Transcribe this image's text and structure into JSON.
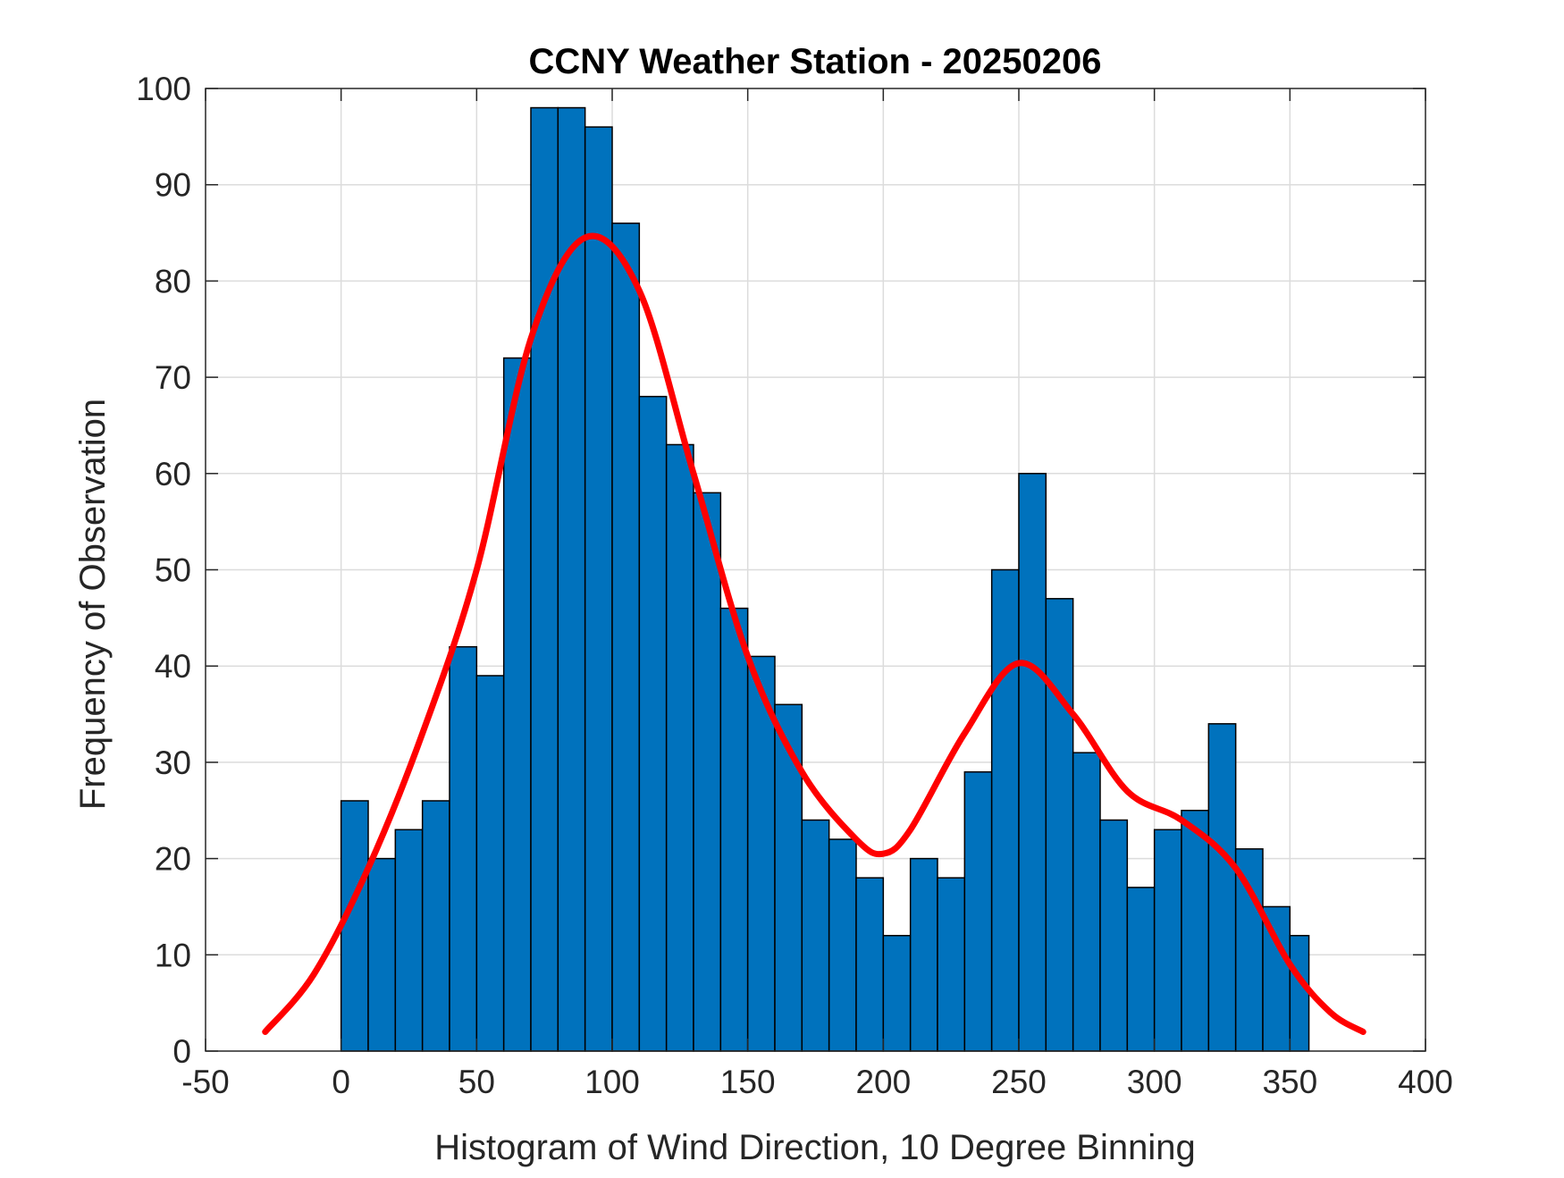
{
  "chart_data": {
    "type": "bar",
    "title": "CCNY Weather Station - 20250206",
    "xlabel": "Histogram of Wind Direction, 10 Degree Binning",
    "ylabel": "Frequency of Observation",
    "xlim": [
      -50,
      400
    ],
    "ylim": [
      0,
      100
    ],
    "grid": true,
    "xticks": [
      -50,
      0,
      50,
      100,
      150,
      200,
      250,
      300,
      350,
      400
    ],
    "yticks": [
      0,
      10,
      20,
      30,
      40,
      50,
      60,
      70,
      80,
      90,
      100
    ],
    "bin_width": 10,
    "bin_starts": [
      0,
      10,
      20,
      30,
      40,
      50,
      60,
      70,
      80,
      90,
      100,
      110,
      120,
      130,
      140,
      150,
      160,
      170,
      180,
      190,
      200,
      210,
      220,
      230,
      240,
      250,
      260,
      270,
      280,
      290,
      300,
      310,
      320,
      330,
      340,
      350
    ],
    "values": [
      26,
      20,
      23,
      26,
      42,
      39,
      72,
      98,
      98,
      96,
      86,
      68,
      63,
      58,
      46,
      41,
      36,
      24,
      22,
      18,
      12,
      20,
      18,
      29,
      50,
      60,
      47,
      31,
      24,
      17,
      23,
      25,
      34,
      21,
      15,
      12
    ],
    "last_bin_end": 357,
    "bar_color": "#0072BD",
    "curve": {
      "name": "density fit",
      "color": "#FF0000",
      "x": [
        -28,
        -10,
        10,
        30,
        50,
        70,
        90,
        110,
        130,
        150,
        170,
        190,
        200,
        210,
        230,
        250,
        270,
        290,
        310,
        330,
        350,
        365,
        377
      ],
      "y": [
        2,
        8,
        19,
        33,
        50,
        74,
        84.5,
        79,
        60,
        41,
        29,
        22,
        20.5,
        23,
        33,
        40.3,
        35,
        27,
        24,
        19,
        9,
        4,
        2
      ]
    }
  }
}
